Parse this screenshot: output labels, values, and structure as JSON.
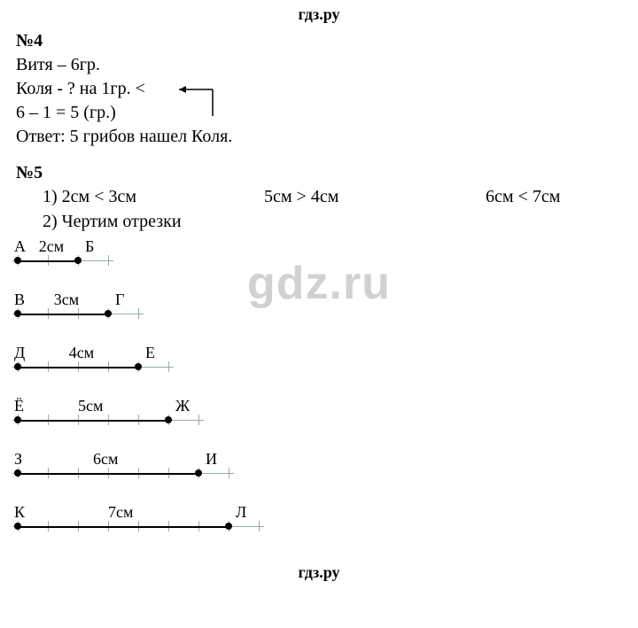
{
  "header": "гдз.ру",
  "watermark": "gdz.ru",
  "footer": "гдз.ру",
  "problem4": {
    "num": "№4",
    "line1_pre": "Витя – 6гр.",
    "line2": "Коля - ? на 1гр. <",
    "line3": "6 – 1 = 5 (гр.)",
    "answer": "Ответ: 5 грибов нашел Коля."
  },
  "problem5": {
    "num": "№5",
    "part1": {
      "a": "1)  2см < 3см",
      "b": "5см > 4см",
      "c": "6см < 7см"
    },
    "part2": "2)  Чертим отрезки"
  },
  "segments_common": {
    "tick_spacing_px": 34,
    "ruler_extra_ticks": 1,
    "ruler_color": "#9aa"
  },
  "segments": [
    {
      "left_label": "А",
      "right_label": "Б",
      "length_cm": 2,
      "length_text": "2см",
      "label_offset_ticks": 0.7
    },
    {
      "left_label": "В",
      "right_label": "Г",
      "length_cm": 3,
      "length_text": "3см",
      "label_offset_ticks": 1.2
    },
    {
      "left_label": "Д",
      "right_label": "Е",
      "length_cm": 4,
      "length_text": "4см",
      "label_offset_ticks": 1.7
    },
    {
      "left_label": "Ё",
      "right_label": "Ж",
      "length_cm": 5,
      "length_text": "5см",
      "label_offset_ticks": 2.0
    },
    {
      "left_label": "З",
      "right_label": "И",
      "length_cm": 6,
      "length_text": "6см",
      "label_offset_ticks": 2.5
    },
    {
      "left_label": "К",
      "right_label": "Л",
      "length_cm": 7,
      "length_text": "7см",
      "label_offset_ticks": 3.0
    }
  ]
}
